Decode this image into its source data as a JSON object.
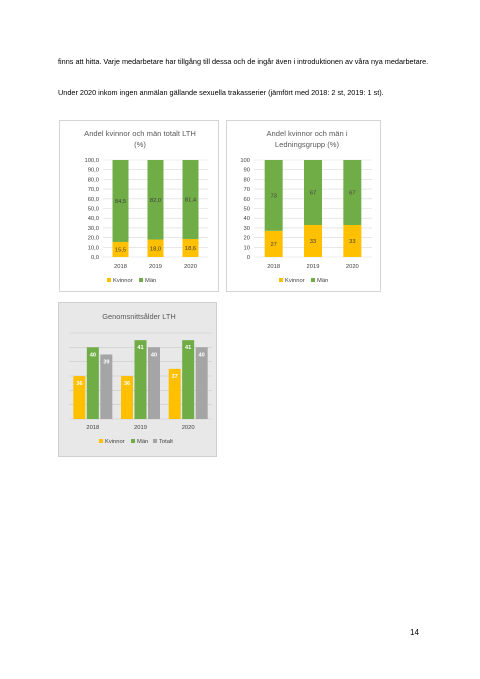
{
  "text": {
    "paragraph_1": "finns att hitta. Varje medarbetare har tillgång till dessa och de ingår även i introduktionen av våra nya medarbetare.",
    "paragraph_2": "Under 2020 inkom ingen anmälan gällande sexuella trakasserier (jämfört med 2018: 2 st, 2019: 1 st).",
    "page_number": "14"
  },
  "colors": {
    "kvinnor": "#ffc000",
    "man": "#70ad47",
    "totalt": "#a5a5a5",
    "grid": "#d9d9d9",
    "title": "#595959",
    "label": "#404040"
  },
  "chart_data": [
    {
      "type": "bar",
      "stacked": true,
      "title_lines": [
        "Andel kvinnor och män totalt LTH",
        "(%)"
      ],
      "categories": [
        "2018",
        "2019",
        "2020"
      ],
      "series": [
        {
          "name": "Kvinnor",
          "values": [
            15.5,
            18.0,
            18.6
          ],
          "labels": [
            "15,5",
            "18,0",
            "18,6"
          ]
        },
        {
          "name": "Män",
          "values": [
            84.5,
            82.0,
            81.4
          ],
          "labels": [
            "84,5",
            "82,0",
            "81,4"
          ]
        }
      ],
      "ylim": [
        0,
        100
      ],
      "yticks": [
        "0,0",
        "10,0",
        "20,0",
        "30,0",
        "40,0",
        "50,0",
        "60,0",
        "70,0",
        "80,0",
        "90,0",
        "100,0"
      ],
      "grid": true,
      "legend": "bottom"
    },
    {
      "type": "bar",
      "stacked": true,
      "title_lines": [
        "Andel kvinnor och män i",
        "Ledningsgrupp (%)"
      ],
      "categories": [
        "2018",
        "2019",
        "2020"
      ],
      "series": [
        {
          "name": "Kvinnor",
          "values": [
            27,
            33,
            33
          ],
          "labels": [
            "27",
            "33",
            "33"
          ]
        },
        {
          "name": "Män",
          "values": [
            73,
            67,
            67
          ],
          "labels": [
            "73",
            "67",
            "67"
          ]
        }
      ],
      "ylim": [
        0,
        100
      ],
      "yticks": [
        "0",
        "10",
        "20",
        "30",
        "40",
        "50",
        "60",
        "70",
        "80",
        "90",
        "100"
      ],
      "grid": true,
      "legend": "bottom"
    },
    {
      "type": "bar",
      "stacked": false,
      "title_lines": [
        "Genomsnittsålder LTH"
      ],
      "categories": [
        "2018",
        "2019",
        "2020"
      ],
      "series": [
        {
          "name": "Kvinnor",
          "values": [
            36,
            36,
            37
          ],
          "labels": [
            "36",
            "36",
            "37"
          ]
        },
        {
          "name": "Män",
          "values": [
            40,
            41,
            41
          ],
          "labels": [
            "40",
            "41",
            "41"
          ]
        },
        {
          "name": "Totalt",
          "values": [
            39,
            40,
            40
          ],
          "labels": [
            "39",
            "40",
            "40"
          ]
        }
      ],
      "ylim": [
        30,
        42
      ],
      "grid": true,
      "legend": "bottom"
    }
  ]
}
